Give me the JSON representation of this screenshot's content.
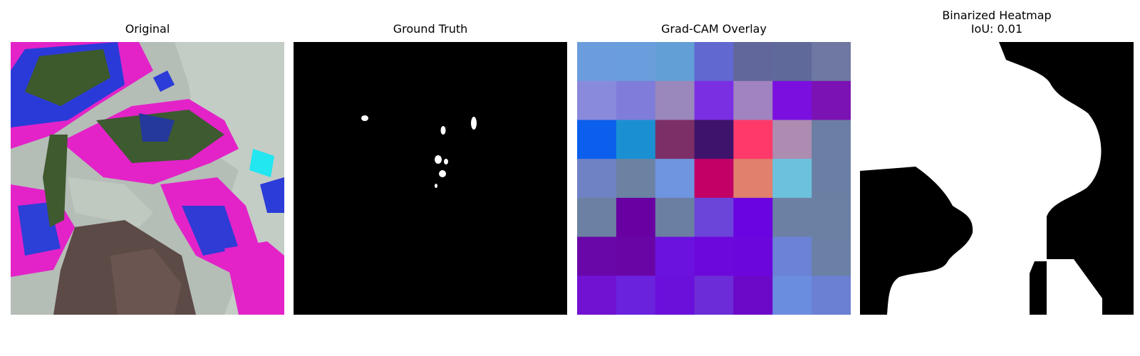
{
  "figure": {
    "panels": [
      {
        "id": "original",
        "title": "Original"
      },
      {
        "id": "ground_truth",
        "title": "Ground Truth"
      },
      {
        "id": "gradcam_overlay",
        "title": "Grad-CAM Overlay"
      },
      {
        "id": "binarized_heatmap",
        "title": "Binarized Heatmap",
        "subtitle": "IoU: 0.01"
      }
    ],
    "gradcam_grid": {
      "rows": 7,
      "cols": 7,
      "colors": [
        [
          "#6b9ddc",
          "#6a9ddc",
          "#629fd6",
          "#6168d0",
          "#62679b",
          "#5f6a9a",
          "#6f77a3"
        ],
        [
          "#8a8adc",
          "#7f7dd9",
          "#9a87bb",
          "#7b2fe3",
          "#a083c0",
          "#7b0fe0",
          "#7b12b4"
        ],
        [
          "#0b5fec",
          "#1a90d3",
          "#7c2f67",
          "#3e136b",
          "#ff3a6b",
          "#ac8cb1",
          "#6c7ea3"
        ],
        [
          "#6f82c4",
          "#6b82a3",
          "#6f95e0",
          "#c20065",
          "#e0806d",
          "#6cc2dd",
          "#6b7fa5"
        ],
        [
          "#6b80a3",
          "#6900a2",
          "#6b7fa3",
          "#6b44d9",
          "#6a04e0",
          "#6b80a3",
          "#6b80a3"
        ],
        [
          "#6a07a9",
          "#6a05a5",
          "#6b12df",
          "#6c08db",
          "#6b07dd",
          "#6b82d7",
          "#6b80a5"
        ],
        [
          "#7111d2",
          "#6b22dd",
          "#6b0fdb",
          "#6c2cd7",
          "#6c08c8",
          "#6b8ddf",
          "#6b80d2"
        ]
      ]
    },
    "colors": {
      "background": "#ffffff",
      "mask_fg": "#ffffff",
      "mask_bg": "#000000"
    }
  }
}
